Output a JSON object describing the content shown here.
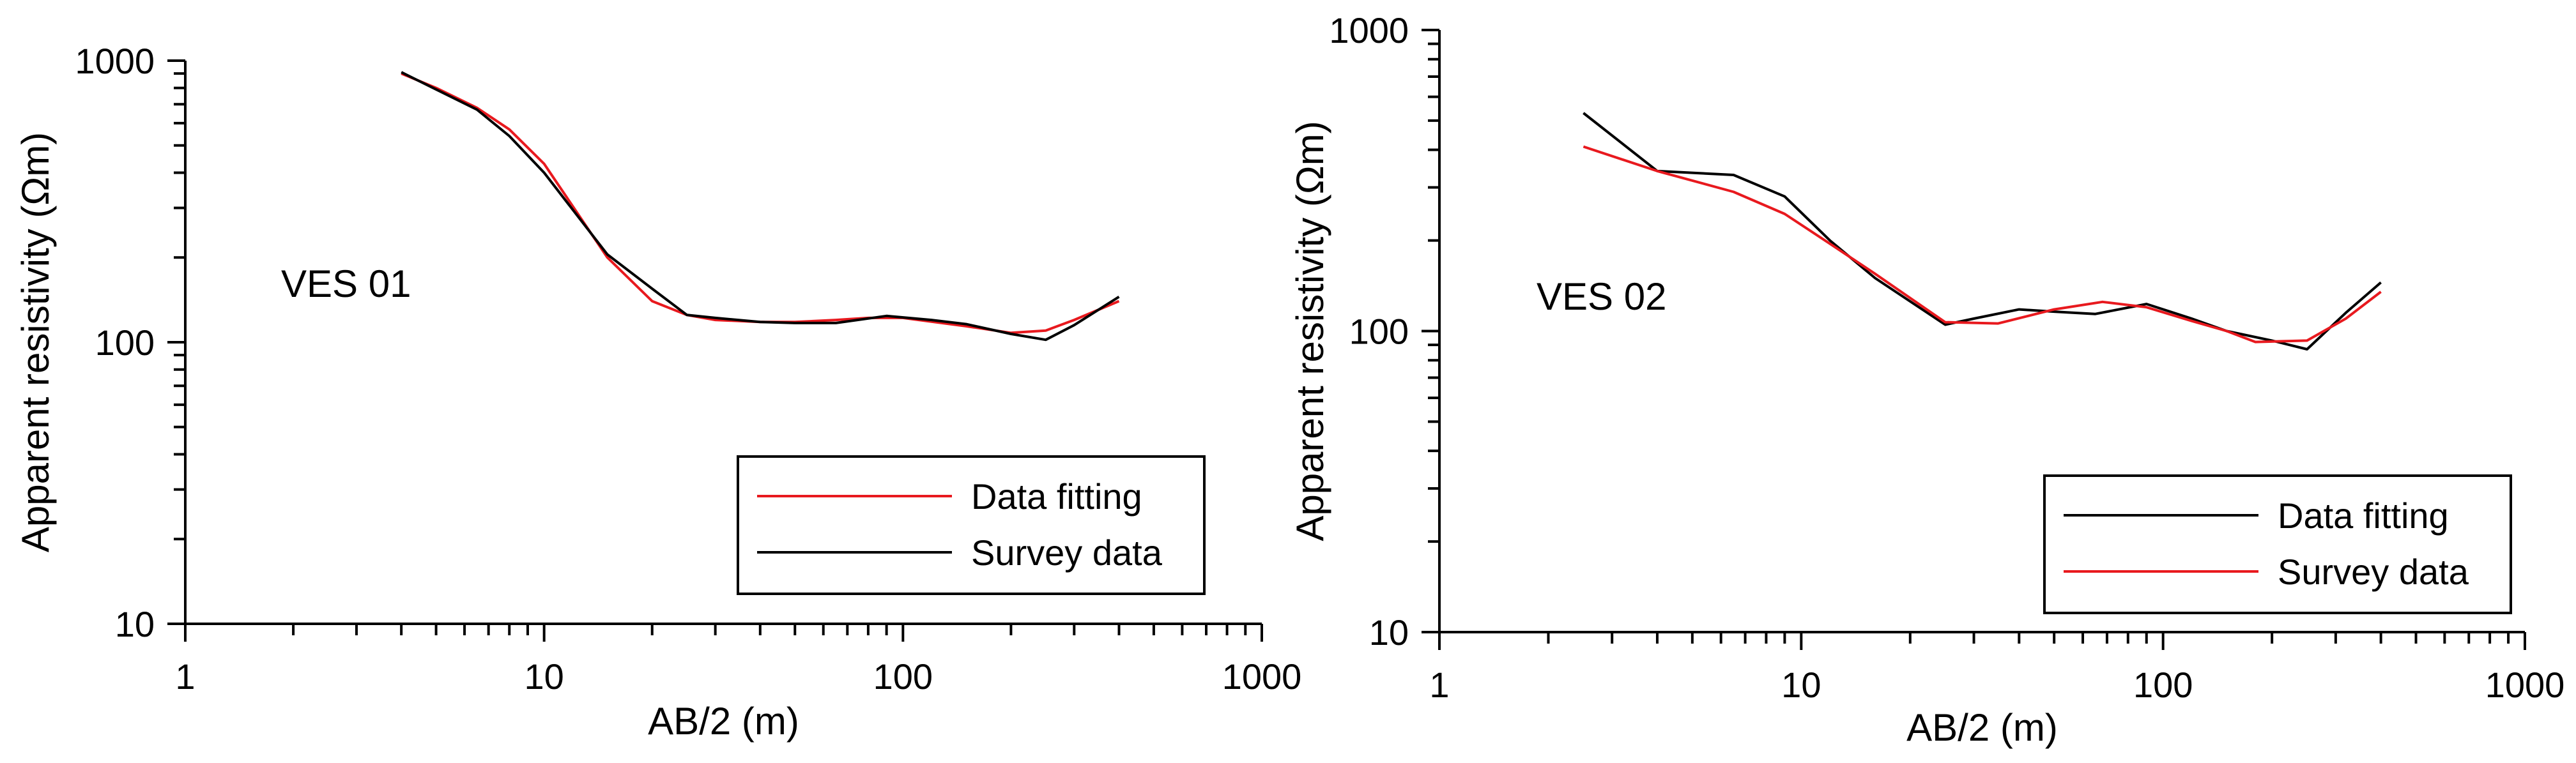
{
  "chart_data": [
    {
      "type": "line",
      "xscale": "log",
      "yscale": "log",
      "xlim": [
        1,
        1000
      ],
      "ylim": [
        10,
        1000
      ],
      "xticks": [
        1,
        10,
        100,
        1000
      ],
      "xtick_labels": [
        "1",
        "10",
        "100",
        "1000"
      ],
      "yticks": [
        10,
        100,
        1000
      ],
      "ytick_labels": [
        "10",
        "100",
        "1000"
      ],
      "xlabel": "AB/2 (m)",
      "ylabel": "Apparent resistivity (Ωm)",
      "annotation": "VES 01",
      "legend_position": "bottom-right",
      "series": [
        {
          "name": "Data fitting",
          "color": "#e8191e",
          "x": [
            4,
            5,
            6.5,
            8,
            10,
            15,
            20,
            25,
            30,
            40,
            50,
            65,
            80,
            100,
            150,
            200,
            250,
            300,
            400
          ],
          "y": [
            900,
            800,
            680,
            570,
            430,
            200,
            140,
            125,
            120,
            118,
            118,
            120,
            122,
            122,
            114,
            108,
            110,
            120,
            140
          ]
        },
        {
          "name": "Survey data",
          "color": "#000000",
          "x": [
            4,
            5,
            6.5,
            8,
            10,
            15,
            20,
            25,
            30,
            40,
            50,
            65,
            90,
            120,
            150,
            200,
            250,
            300,
            400
          ],
          "y": [
            910,
            790,
            670,
            540,
            400,
            205,
            155,
            125,
            122,
            118,
            117,
            117,
            124,
            120,
            116,
            107,
            102,
            115,
            145
          ]
        }
      ]
    },
    {
      "type": "line",
      "xscale": "log",
      "yscale": "log",
      "xlim": [
        1,
        1000
      ],
      "ylim": [
        10,
        1000
      ],
      "xticks": [
        1,
        10,
        100,
        1000
      ],
      "xtick_labels": [
        "1",
        "10",
        "100",
        "1000"
      ],
      "yticks": [
        10,
        100,
        1000
      ],
      "ytick_labels": [
        "10",
        "100",
        "1000"
      ],
      "xlabel": "AB/2 (m)",
      "ylabel": "Apparent resistivity (Ωm)",
      "annotation": "VES 02",
      "legend_position": "bottom-right",
      "series": [
        {
          "name": "Data fitting",
          "color": "#000000",
          "x": [
            2.5,
            4,
            6.5,
            9,
            12,
            16,
            25,
            30,
            40,
            50,
            65,
            90,
            120,
            150,
            200,
            250,
            320,
            400
          ],
          "y": [
            530,
            340,
            330,
            280,
            200,
            150,
            105,
            110,
            118,
            116,
            114,
            123,
            110,
            100,
            93,
            87,
            115,
            145
          ]
        },
        {
          "name": "Survey data",
          "color": "#e8191e",
          "x": [
            2.5,
            4,
            6.5,
            9,
            12,
            16,
            25,
            35,
            50,
            68,
            90,
            120,
            150,
            180,
            250,
            320,
            400
          ],
          "y": [
            410,
            340,
            290,
            245,
            195,
            155,
            107,
            106,
            118,
            125,
            120,
            108,
            100,
            92,
            93,
            110,
            135
          ]
        }
      ]
    }
  ]
}
